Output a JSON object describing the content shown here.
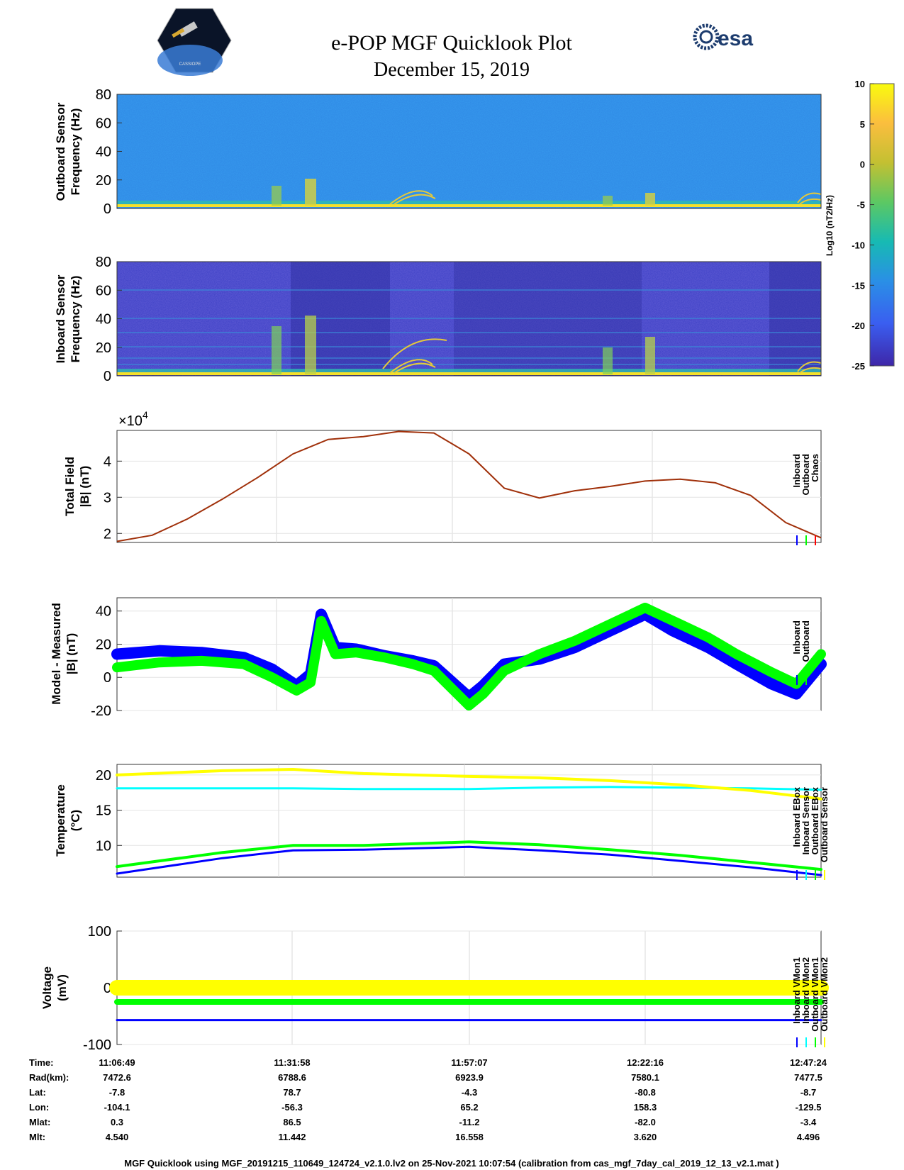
{
  "header": {
    "title": "e-POP MGF Quicklook Plot",
    "date": "December 15, 2019",
    "left_logo_text": "CASSIOPE",
    "right_logo_text": "esa"
  },
  "colors": {
    "blue": "#0000ff",
    "green": "#00ff00",
    "red": "#ff0000",
    "cyan": "#00ffff",
    "yellow": "#ffff00",
    "brown": "#a0300a"
  },
  "colorbar": {
    "label": "Log10 (nT2/Hz)",
    "ticks": [
      "10",
      "5",
      "0",
      "-5",
      "-10",
      "-15",
      "-20",
      "-25"
    ]
  },
  "chart_data": [
    {
      "id": "outboard-spectrogram",
      "type": "heatmap",
      "ylabel": [
        "Outboard Sensor",
        "Frequency (Hz)"
      ],
      "ylim": [
        0,
        80
      ],
      "yticks": [
        "80",
        "60",
        "40",
        "20",
        "0"
      ]
    },
    {
      "id": "inboard-spectrogram",
      "type": "heatmap",
      "ylabel": [
        "Inboard Sensor",
        "Frequency (Hz)"
      ],
      "ylim": [
        0,
        80
      ],
      "yticks": [
        "80",
        "60",
        "40",
        "20",
        "0"
      ]
    },
    {
      "id": "total-field",
      "type": "line",
      "ylabel": [
        "Total Field",
        "|B| (nT)"
      ],
      "multiplier": "×10",
      "multiplier_exp": "4",
      "ylim": [
        1.75,
        4.85
      ],
      "yticks": [
        "4",
        "3",
        "2"
      ],
      "legend": [
        "Inboard",
        "Outboard",
        "Chaos"
      ],
      "x": [
        0,
        0.05,
        0.1,
        0.15,
        0.2,
        0.25,
        0.3,
        0.35,
        0.4,
        0.45,
        0.5,
        0.55,
        0.6,
        0.65,
        0.7,
        0.75,
        0.8,
        0.85,
        0.9,
        0.95,
        1.0
      ],
      "values": [
        1.78,
        1.95,
        2.4,
        2.95,
        3.55,
        4.2,
        4.6,
        4.68,
        4.82,
        4.78,
        4.2,
        3.25,
        2.98,
        3.18,
        3.3,
        3.45,
        3.5,
        3.4,
        3.05,
        2.3,
        1.88
      ]
    },
    {
      "id": "model-measured",
      "type": "line",
      "ylabel": [
        "Model - Measured",
        "|B| (nT)"
      ],
      "ylim": [
        -20,
        48
      ],
      "yticks": [
        "40",
        "20",
        "0",
        "-20"
      ],
      "legend": [
        "Inboard",
        "Outboard"
      ],
      "x": [
        0,
        0.06,
        0.12,
        0.18,
        0.22,
        0.255,
        0.275,
        0.29,
        0.31,
        0.34,
        0.38,
        0.42,
        0.45,
        0.5,
        0.52,
        0.55,
        0.6,
        0.65,
        0.7,
        0.75,
        0.79,
        0.84,
        0.88,
        0.93,
        0.965,
        1.0
      ],
      "series": [
        {
          "name": "Inboard",
          "values": [
            14,
            16,
            15,
            12,
            5,
            -5,
            2,
            38,
            18,
            17,
            13,
            10,
            7,
            -12,
            -5,
            8,
            11,
            18,
            28,
            38,
            28,
            18,
            8,
            -4,
            -10,
            8
          ]
        },
        {
          "name": "Outboard",
          "values": [
            6,
            9,
            10,
            8,
            0,
            -8,
            -3,
            34,
            14,
            15,
            12,
            8,
            4,
            -17,
            -10,
            4,
            14,
            22,
            32,
            42,
            34,
            24,
            14,
            3,
            -4,
            14
          ]
        }
      ]
    },
    {
      "id": "temperature",
      "type": "line",
      "ylabel": [
        "Temperature",
        "(°C)"
      ],
      "ylim": [
        5.5,
        21.5
      ],
      "yticks": [
        "20",
        "15",
        "10"
      ],
      "legend": [
        "Inboard EBox",
        "Inboard Sensor",
        "Outboard EBox",
        "Outboard Sensor"
      ],
      "x": [
        0,
        0.15,
        0.25,
        0.35,
        0.5,
        0.6,
        0.7,
        0.8,
        0.9,
        1.0
      ],
      "series": [
        {
          "name": "Inboard EBox",
          "values": [
            6.0,
            8.2,
            9.3,
            9.4,
            9.8,
            9.3,
            8.7,
            7.8,
            6.9,
            5.8
          ]
        },
        {
          "name": "Inboard Sensor",
          "values": [
            18.1,
            18.1,
            18.1,
            18.0,
            18.0,
            18.2,
            18.3,
            18.2,
            18.1,
            17.9
          ]
        },
        {
          "name": "Outboard EBox",
          "values": [
            7.0,
            9.0,
            10.0,
            10.0,
            10.5,
            10.1,
            9.4,
            8.6,
            7.6,
            6.6
          ]
        },
        {
          "name": "Outboard Sensor",
          "values": [
            20.0,
            20.6,
            20.8,
            20.2,
            19.8,
            19.6,
            19.2,
            18.6,
            17.8,
            16.6
          ]
        }
      ]
    },
    {
      "id": "voltage",
      "type": "line",
      "ylabel": [
        "Voltage",
        "(mV)"
      ],
      "ylim": [
        -100,
        100
      ],
      "yticks": [
        "100",
        "0",
        "-100"
      ],
      "legend": [
        "Inboard VMon1",
        "Inboard VMon2",
        "Outboard VMon1",
        "Outboard VMon2"
      ],
      "x": [
        0,
        1.0
      ],
      "series": [
        {
          "name": "Inboard VMon1",
          "values": [
            -57,
            -57
          ]
        },
        {
          "name": "Inboard VMon2",
          "values": [
            5,
            5
          ]
        },
        {
          "name": "Outboard VMon1",
          "values": [
            -25,
            -25
          ]
        },
        {
          "name": "Outboard VMon2",
          "values": [
            0,
            0
          ]
        }
      ]
    }
  ],
  "ephemeris": {
    "labels": [
      "Time:",
      "Rad(km):",
      "Lat:",
      "Lon:",
      "Mlat:",
      "Mlt:"
    ],
    "columns": [
      [
        "11:06:49",
        "7472.6",
        "-7.8",
        "-104.1",
        "0.3",
        "4.540"
      ],
      [
        "11:31:58",
        "6788.6",
        "78.7",
        "-56.3",
        "86.5",
        "11.442"
      ],
      [
        "11:57:07",
        "6923.9",
        "-4.3",
        "65.2",
        "-11.2",
        "16.558"
      ],
      [
        "12:22:16",
        "7580.1",
        "-80.8",
        "158.3",
        "-82.0",
        "3.620"
      ],
      [
        "12:47:24",
        "7477.5",
        "-8.7",
        "-129.5",
        "-3.4",
        "4.496"
      ]
    ]
  },
  "footer": "MGF Quicklook using MGF_20191215_110649_124724_v2.1.0.lv2 on 25-Nov-2021 10:07:54 (calibration from cas_mgf_7day_cal_2019_12_13_v2.1.mat )"
}
